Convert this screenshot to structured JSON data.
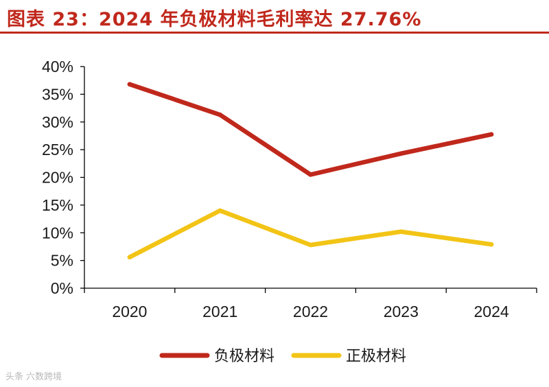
{
  "title": "图表 23：2024 年负极材料毛利率达 27.76%",
  "watermark": "头条 六数跨境",
  "colors": {
    "title": "#c0281c",
    "anode": "#c0281c",
    "cathode": "#f2c416",
    "axis": "#000000"
  },
  "chart_data": {
    "type": "line",
    "title": "图表 23：2024 年负极材料毛利率达 27.76%",
    "categories": [
      "2020",
      "2021",
      "2022",
      "2023",
      "2024"
    ],
    "y_ticks": [
      "0%",
      "5%",
      "10%",
      "15%",
      "20%",
      "25%",
      "30%",
      "35%",
      "40%"
    ],
    "ylim": [
      0,
      40
    ],
    "grid": false,
    "legend_position": "bottom",
    "series": [
      {
        "name": "负极材料",
        "color": "#c0281c",
        "values": [
          36.8,
          31.3,
          20.5,
          24.3,
          27.76
        ]
      },
      {
        "name": "正极材料",
        "color": "#f2c416",
        "values": [
          5.6,
          14.0,
          7.8,
          10.2,
          7.9
        ]
      }
    ]
  }
}
